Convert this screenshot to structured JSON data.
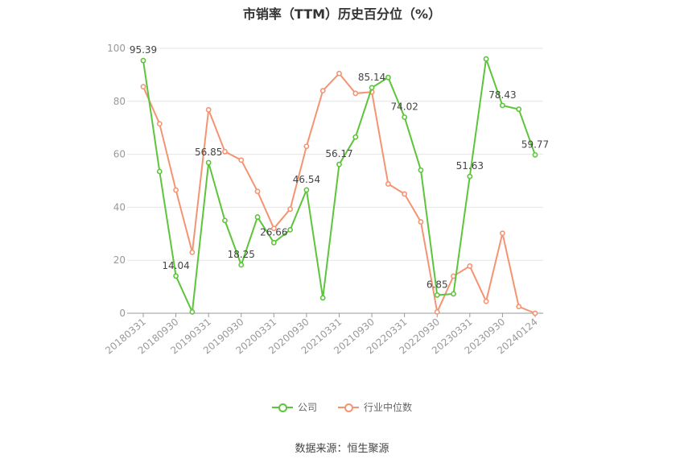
{
  "title": "市销率（TTM）历史百分位（%）",
  "source": "数据来源：恒生聚源",
  "colors": {
    "company": "#5cc53a",
    "industry": "#f59473",
    "grid": "#e6e6e6",
    "axis": "#999999"
  },
  "chart_data": {
    "type": "line",
    "ylim": [
      0,
      100
    ],
    "yticks": [
      0,
      20,
      40,
      60,
      80,
      100
    ],
    "grid": true,
    "legend_position": "bottom",
    "x": [
      "20180331",
      "20180630",
      "20180930",
      "20181231",
      "20190331",
      "20190630",
      "20190930",
      "20191231",
      "20200331",
      "20200630",
      "20200930",
      "20201231",
      "20210331",
      "20210630",
      "20210930",
      "20211231",
      "20220331",
      "20220630",
      "20220930",
      "20221231",
      "20230331",
      "20230630",
      "20230930",
      "20231231",
      "20240124"
    ],
    "xticks": [
      "20180331",
      "20180930",
      "20190331",
      "20190930",
      "20200331",
      "20200930",
      "20210331",
      "20210930",
      "20220331",
      "20220930",
      "20230331",
      "20230930",
      "20240124"
    ],
    "series": [
      {
        "name": "公司",
        "values": [
          95.39,
          53.5,
          14.04,
          0.5,
          56.85,
          35,
          18.25,
          36.3,
          26.66,
          31.5,
          46.54,
          5.8,
          56.17,
          66.5,
          85.14,
          89,
          74.02,
          54,
          6.85,
          7.3,
          51.63,
          96,
          78.43,
          77,
          59.77
        ],
        "labels": {
          "0": "95.39",
          "2": "14.04",
          "4": "56.85",
          "6": "18.25",
          "8": "26.66",
          "10": "46.54",
          "12": "56.17",
          "14": "85.14",
          "16": "74.02",
          "18": "6.85",
          "20": "51.63",
          "22": "78.43",
          "24": "59.77"
        }
      },
      {
        "name": "行业中位数",
        "values": [
          85.5,
          71.5,
          46.5,
          23,
          76.8,
          61,
          57.8,
          46,
          32,
          39.3,
          63,
          84,
          90.5,
          83,
          83.5,
          48.8,
          45,
          34.5,
          0.5,
          14,
          17.8,
          4.5,
          30.2,
          2.5,
          0
        ]
      }
    ]
  }
}
